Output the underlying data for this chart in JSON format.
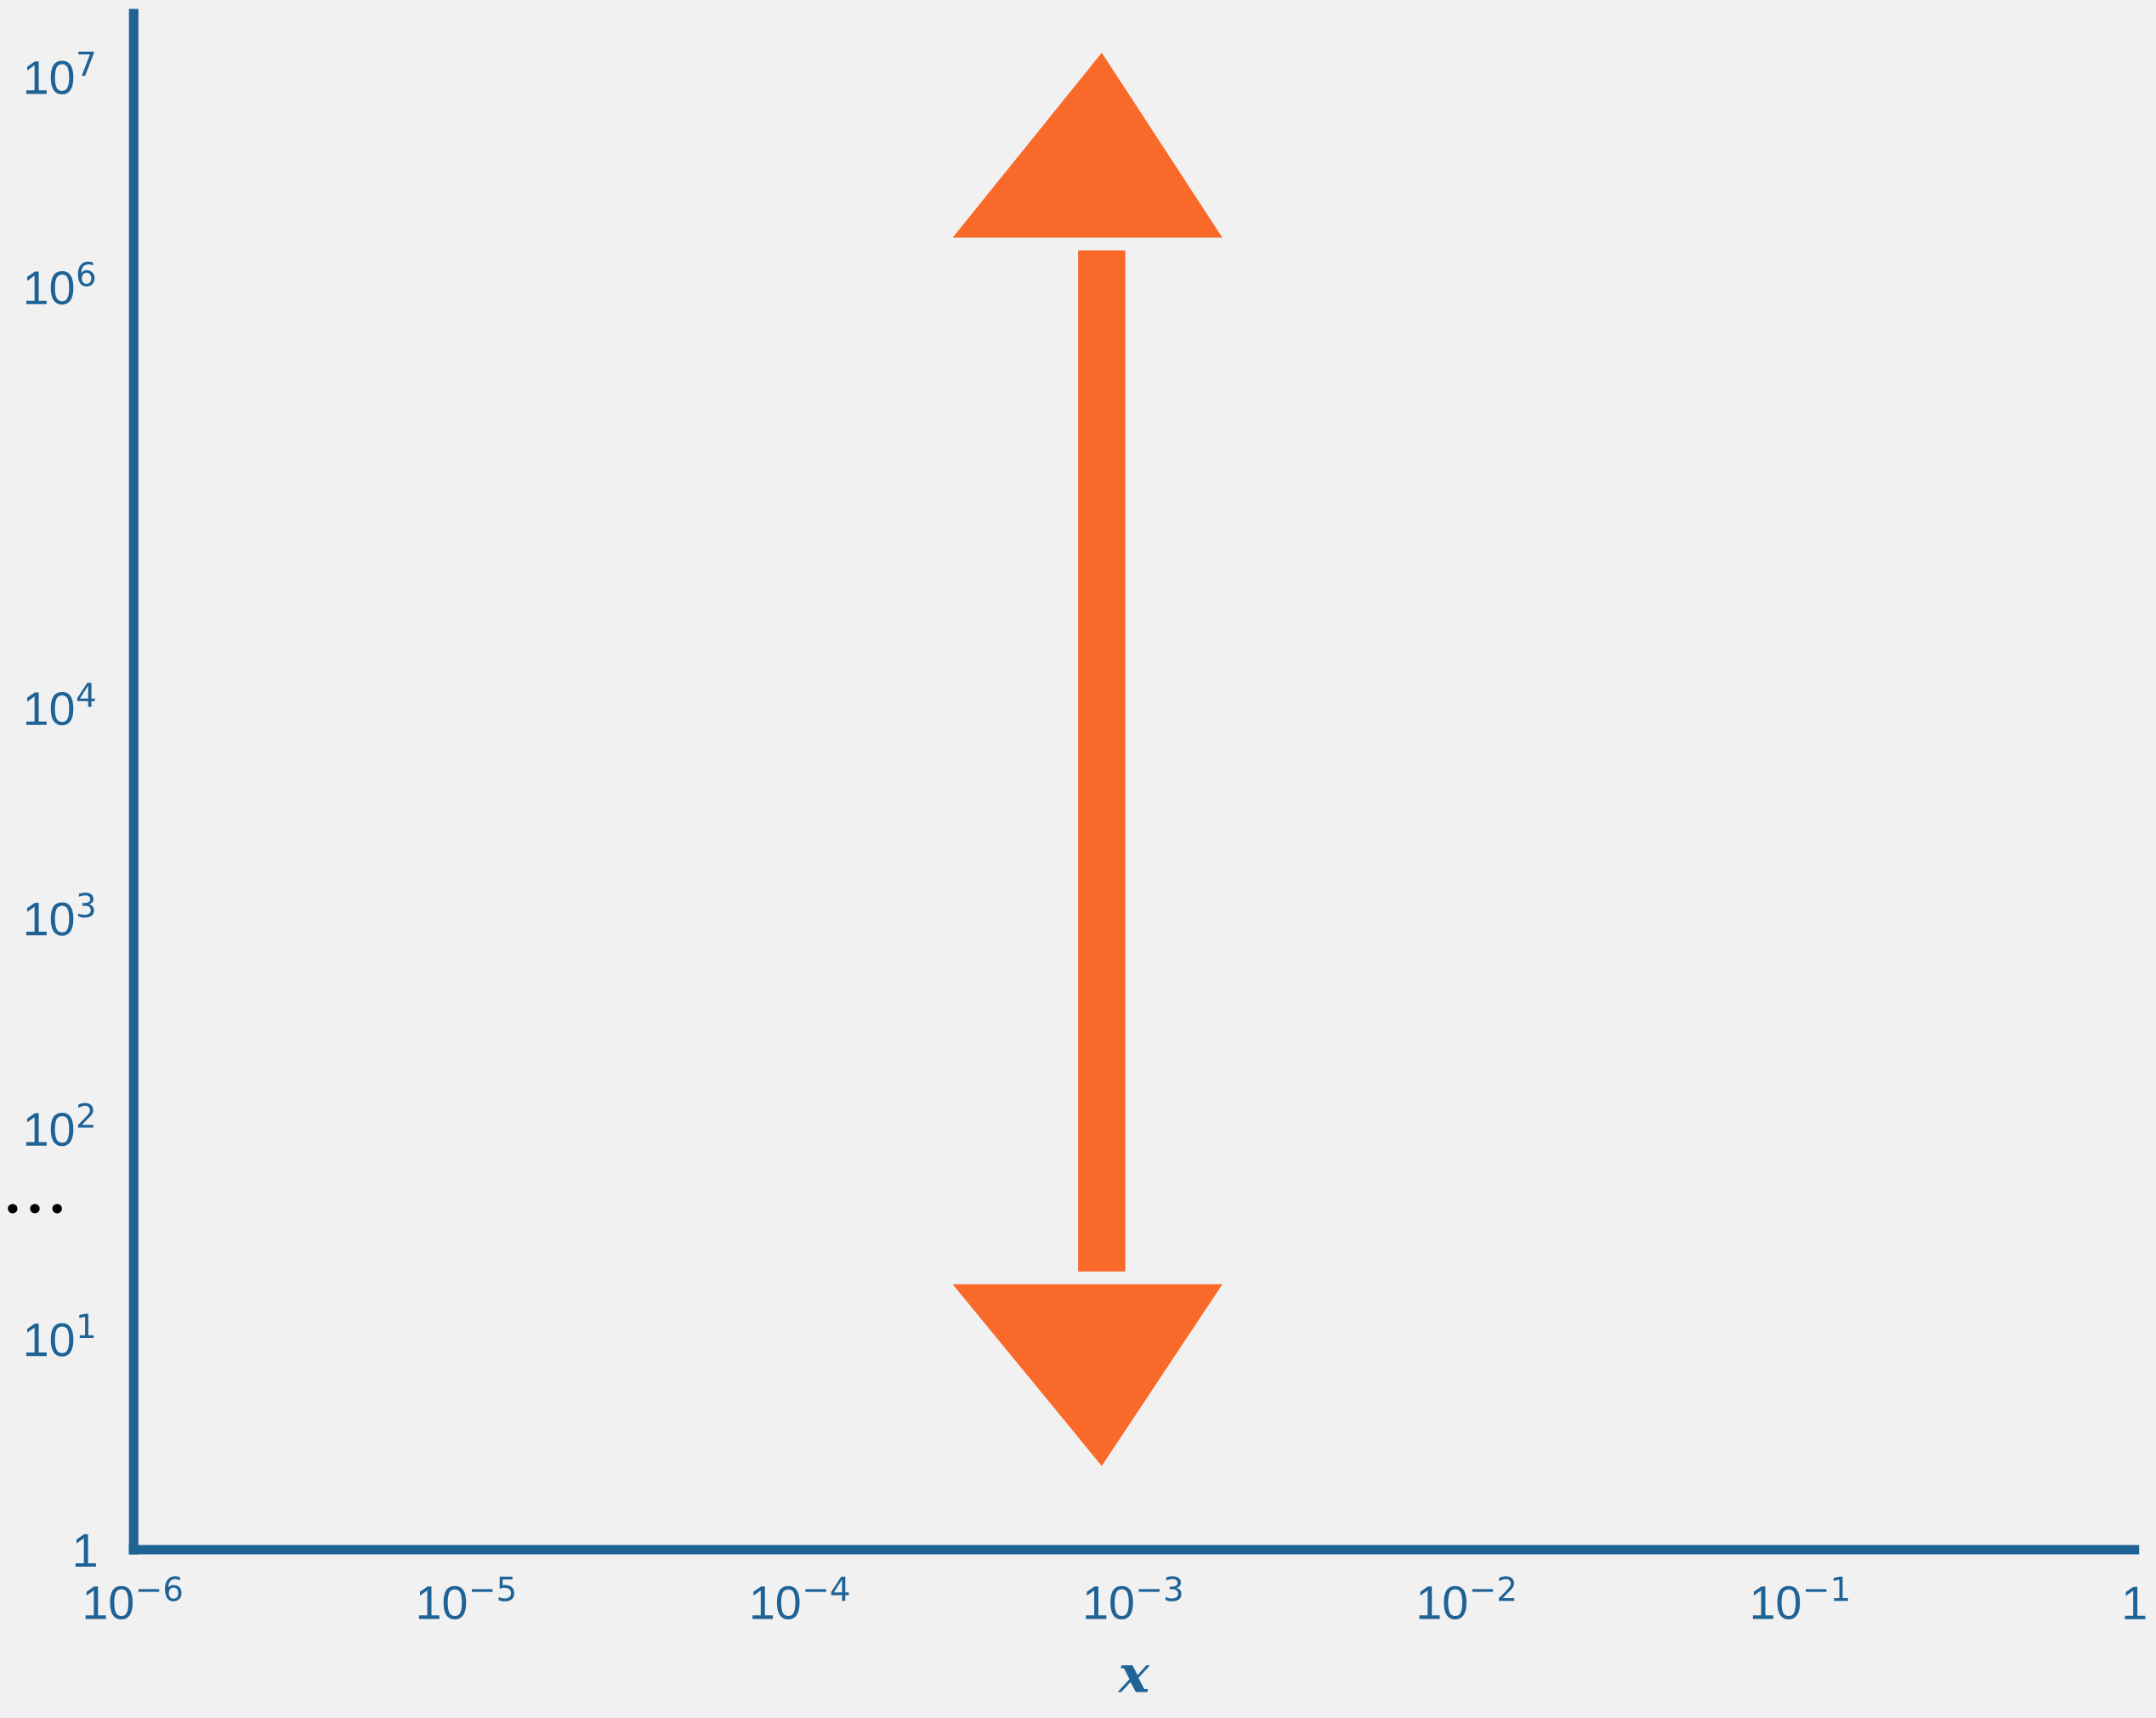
{
  "chart_data": {
    "type": "line",
    "xlabel": "x",
    "log": "xy",
    "series": [
      {
        "color": "#f96a2a",
        "x": [
          0.0008,
          0.0008
        ],
        "values": [
          21,
          1500000
        ]
      }
    ],
    "xlim": [
      1e-06,
      1
    ],
    "ylim": [
      1,
      20000000
    ],
    "xticks": [
      {
        "value": 1e-06,
        "label": "10$^{−6}$"
      },
      {
        "value": 1e-05,
        "label": "10$^{−5}$"
      },
      {
        "value": 0.0001,
        "label": "10$^{−4}$"
      },
      {
        "value": 0.001,
        "label": "10$^{−3}$"
      },
      {
        "value": 0.01,
        "label": "10$^{−2}$"
      },
      {
        "value": 0.1,
        "label": "10$^{−1}$"
      },
      1
    ],
    "yticks": [
      1,
      {
        "value": 10,
        "label": "10$^{1}$"
      },
      {
        "value": 100,
        "label": "10$^{2}$"
      },
      {
        "value": 1000,
        "label": "10$^{3}$"
      },
      {
        "value": 10000,
        "label": "10$^{4}$"
      },
      {
        "value": 1000000,
        "label": "10$^{6}$"
      },
      {
        "value": 10000000,
        "label": "10$^{7}$"
      }
    ],
    "annotations": [
      "• • •"
    ],
    "grid": false,
    "legend": false
  }
}
